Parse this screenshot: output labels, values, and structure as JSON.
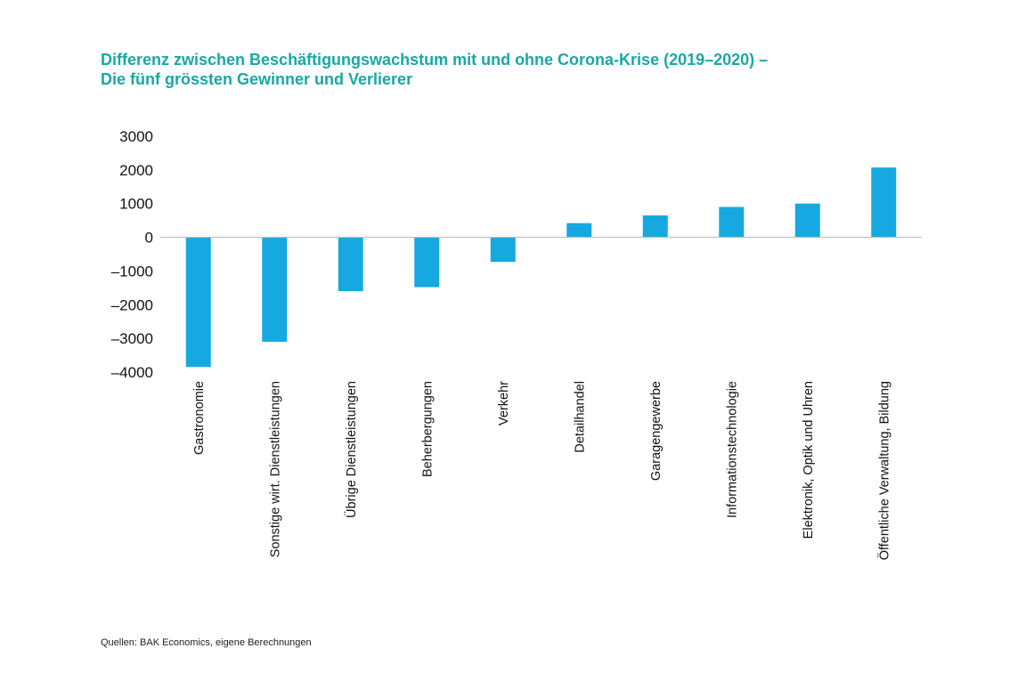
{
  "title_lines": [
    "Differenz zwischen Beschäftigungswachstum mit und ohne Corona-Krise (2019–2020) –",
    "Die fünf grössten Gewinner und Verlierer"
  ],
  "source": "Quellen: BAK Economics, eigene Berechnungen",
  "colors": {
    "title": "#19A8A4",
    "bar": "#16A9E1",
    "text": "#111111",
    "zero_line": "#BDBDBD"
  },
  "chart_data": {
    "type": "bar",
    "title": "Differenz zwischen Beschäftigungswachstum mit und ohne Corona-Krise (2019–2020) – Die fünf grössten Gewinner und Verlierer",
    "xlabel": "",
    "ylabel": "",
    "ylim": [
      -4000,
      3000
    ],
    "yticks": [
      3000,
      2000,
      1000,
      0,
      -1000,
      -2000,
      -3000,
      -4000
    ],
    "ytick_labels": [
      "3000",
      "2000",
      "1000",
      "0",
      "–1000",
      "–2000",
      "–3000",
      "–4000"
    ],
    "grid": false,
    "legend": "none",
    "categories": [
      "Gastronomie",
      "Sonstige wirt. Dienstleistungen",
      "Übrige Dienstleistungen",
      "Beherbergungen",
      "Verkehr",
      "Detailhandel",
      "Garagengewerbe",
      "Informationstechnologie",
      "Elektronik, Optik und Uhren",
      "Öffentliche Verwaltung, Bildung"
    ],
    "values": [
      -3850,
      -3100,
      -1600,
      -1480,
      -730,
      420,
      650,
      900,
      1000,
      2070
    ]
  }
}
